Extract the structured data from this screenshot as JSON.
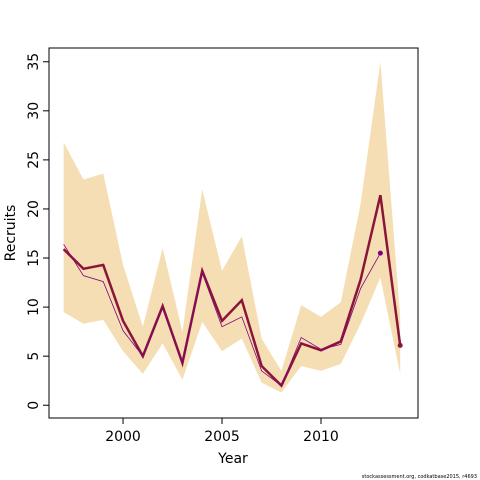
{
  "chart_data": {
    "type": "line",
    "xlabel": "Year",
    "ylabel": "Recruits",
    "footnote": "stockassessment.org, codkatbase2015, r4693",
    "x": [
      1997,
      1998,
      1999,
      2000,
      2001,
      2002,
      2003,
      2004,
      2005,
      2006,
      2007,
      2008,
      2009,
      2010,
      2011,
      2012,
      2013,
      2014
    ],
    "band": {
      "color": "#f5deb3",
      "upper": [
        26.8,
        23.0,
        23.6,
        14.3,
        8.0,
        16.0,
        7.5,
        22.0,
        13.7,
        17.2,
        6.8,
        3.5,
        10.2,
        9.0,
        10.5,
        20.5,
        35.0,
        9.0
      ],
      "lower": [
        9.5,
        8.3,
        8.7,
        5.5,
        3.2,
        6.3,
        2.6,
        8.5,
        5.5,
        6.8,
        2.3,
        1.3,
        4.0,
        3.5,
        4.2,
        8.3,
        13.0,
        3.2
      ]
    },
    "series": [
      {
        "color": "#8b1538",
        "width": 2.5,
        "end_point": true,
        "values": [
          15.9,
          13.9,
          14.3,
          8.6,
          5.0,
          10.1,
          4.3,
          13.7,
          8.6,
          10.7,
          4.0,
          2.0,
          6.3,
          5.6,
          6.5,
          12.8,
          21.4,
          6.1
        ]
      },
      {
        "color": "#800080",
        "width": 0.8,
        "end_point": true,
        "values": [
          16.4,
          13.2,
          12.6,
          7.6,
          5.0,
          9.9,
          4.3,
          13.5,
          8.0,
          9.0,
          3.5,
          2.0,
          6.9,
          5.7,
          6.2,
          11.9,
          15.5,
          null
        ]
      }
    ],
    "xlim": [
      1996.26,
      2014.9
    ],
    "ylim": [
      -1.3,
      36.4
    ],
    "xticks": [
      2000,
      2005,
      2010
    ],
    "yticks": [
      0,
      5,
      10,
      15,
      20,
      25,
      30,
      35
    ]
  }
}
